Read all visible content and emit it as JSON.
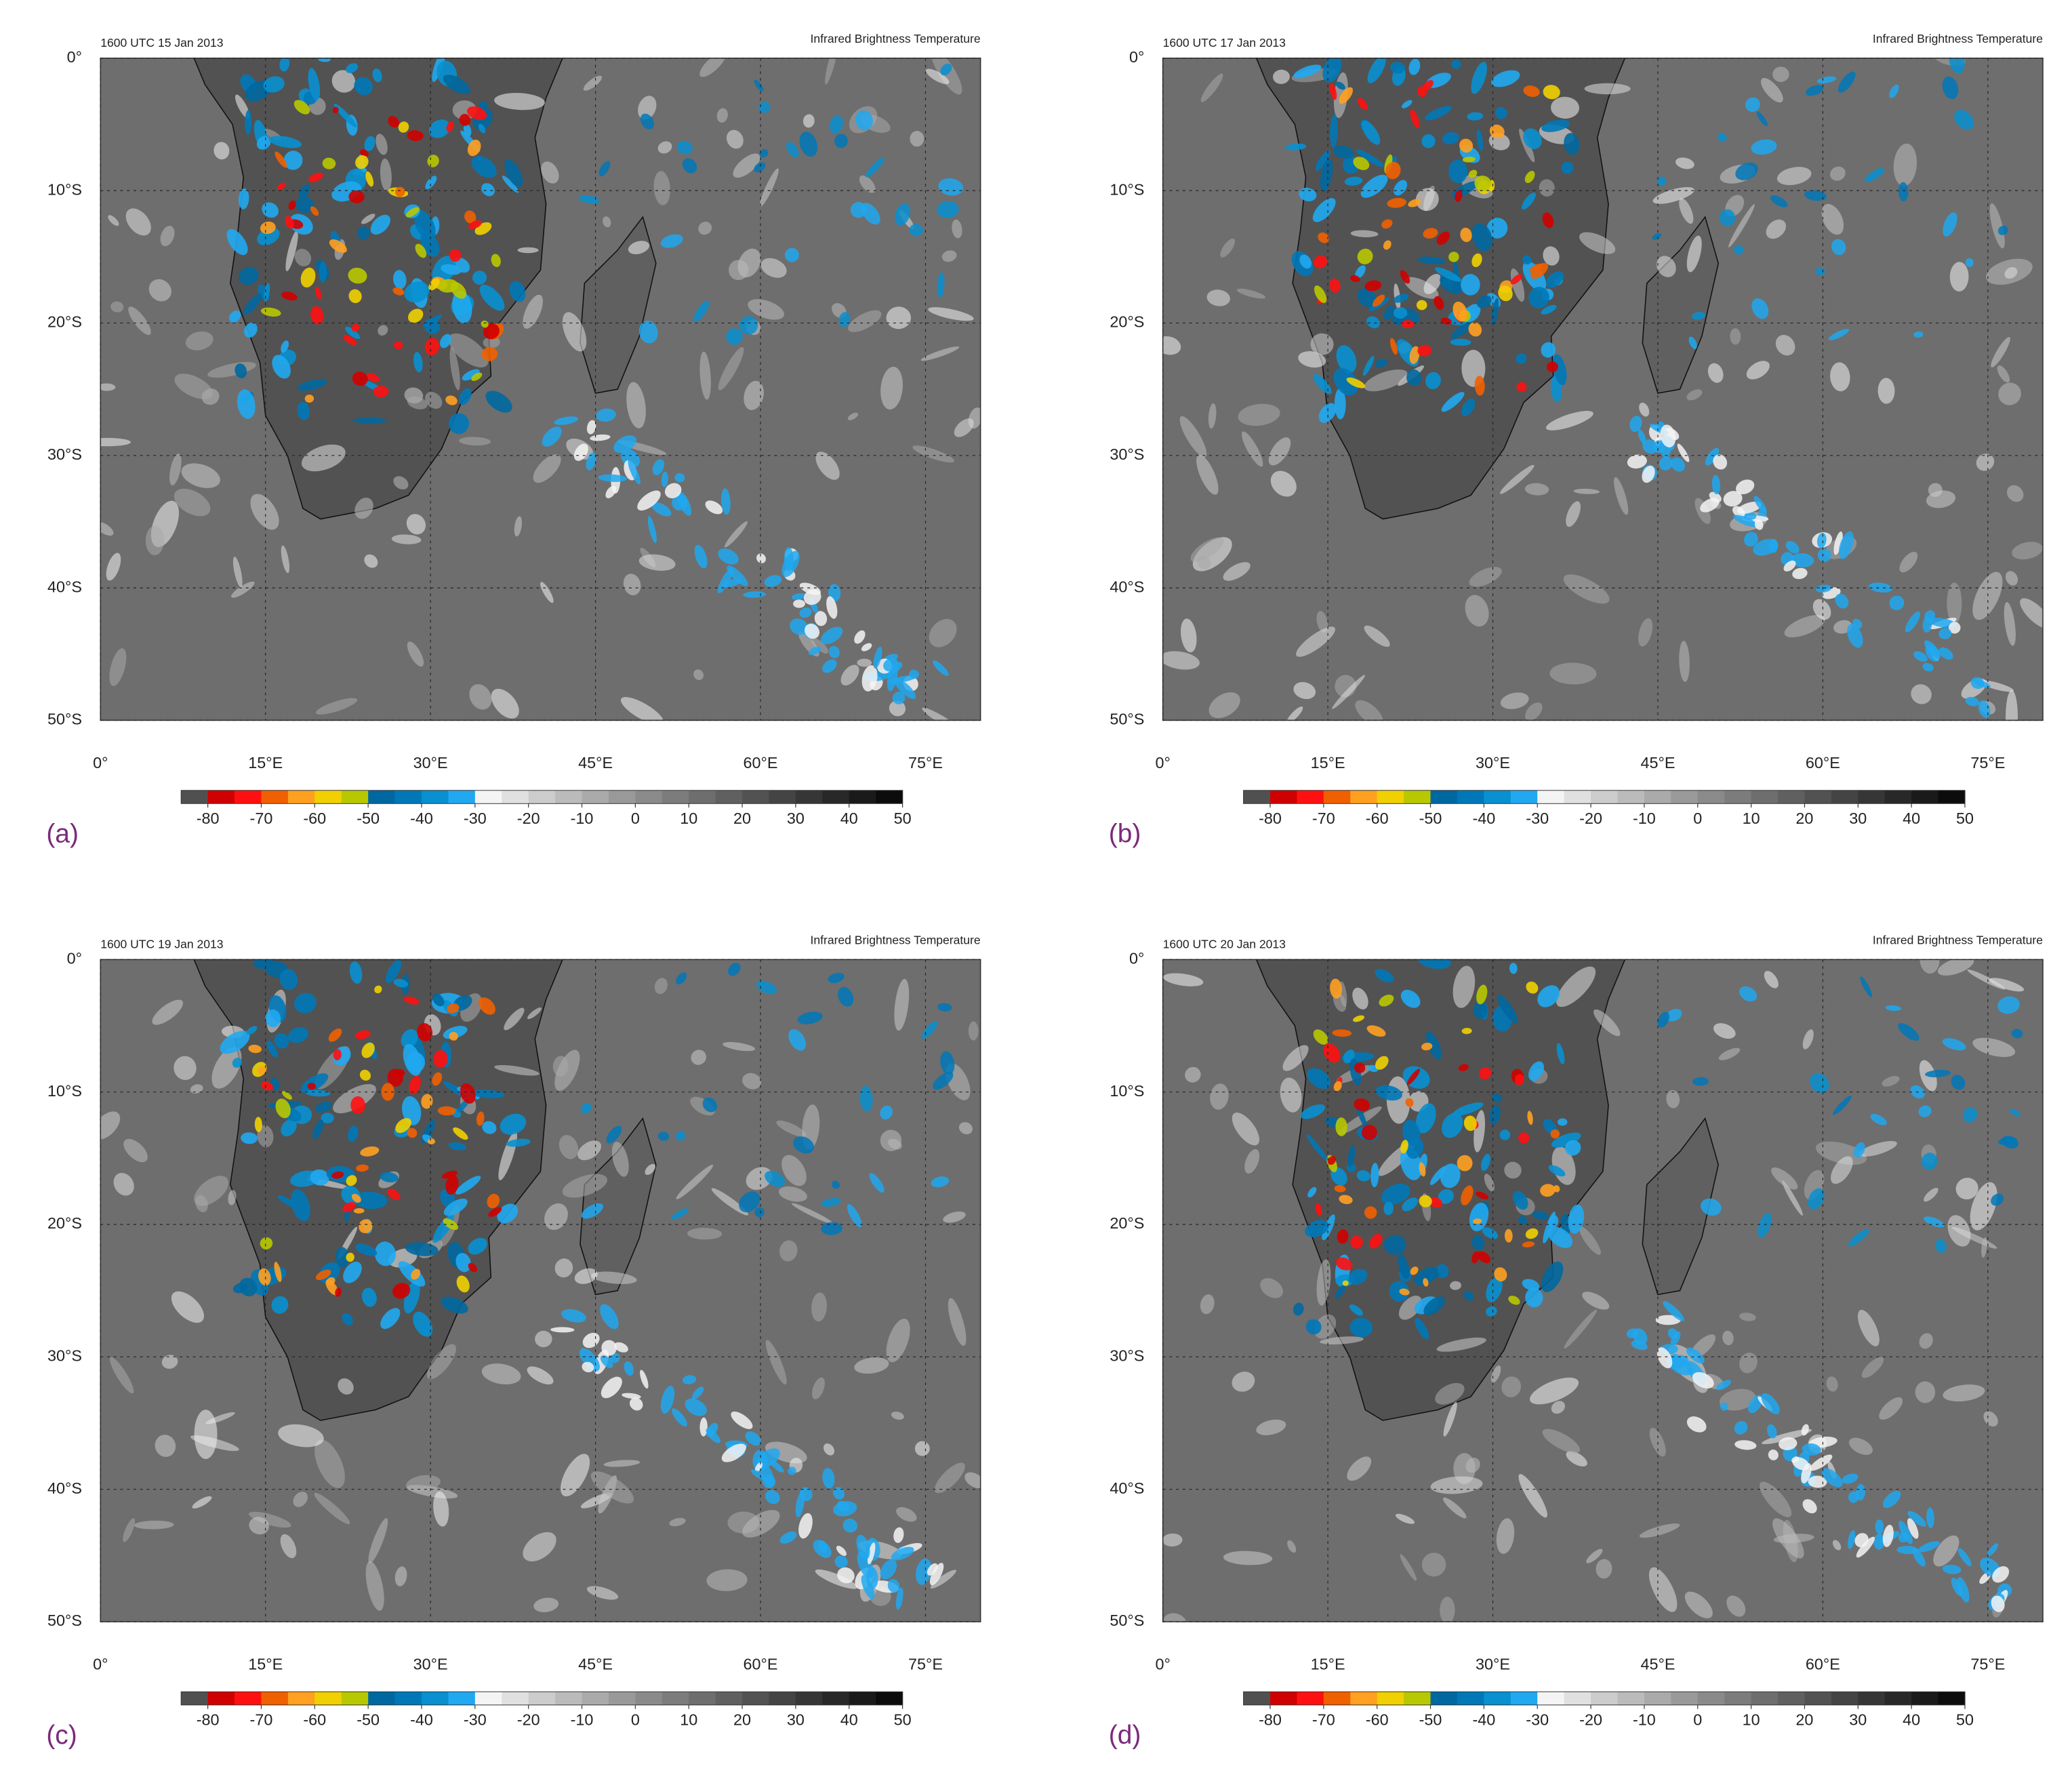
{
  "panels": [
    {
      "label": "(a)",
      "title": "1600 UTC 15 Jan 2013"
    },
    {
      "label": "(b)",
      "title": "1600 UTC 17 Jan 2013"
    },
    {
      "label": "(c)",
      "title": "1600 UTC 19 Jan 2013"
    },
    {
      "label": "(d)",
      "title": "1600 UTC 20 Jan 2013"
    }
  ],
  "product": "Infrared Brightness Temperature",
  "map": {
    "lon_range": [
      0,
      80
    ],
    "lat_range": [
      0,
      -50
    ],
    "lon_ticks": [
      {
        "value": 0,
        "label": "0°"
      },
      {
        "value": 15,
        "label": "15°E"
      },
      {
        "value": 30,
        "label": "30°E"
      },
      {
        "value": 45,
        "label": "45°E"
      },
      {
        "value": 60,
        "label": "60°E"
      },
      {
        "value": 75,
        "label": "75°E"
      }
    ],
    "lat_ticks": [
      {
        "value": 0,
        "label": "0°"
      },
      {
        "value": -10,
        "label": "10°S"
      },
      {
        "value": -20,
        "label": "20°S"
      },
      {
        "value": -30,
        "label": "30°S"
      },
      {
        "value": -40,
        "label": "40°S"
      },
      {
        "value": -50,
        "label": "50°S"
      }
    ]
  },
  "colorbar": {
    "range": [
      -85,
      50
    ],
    "ticks": [
      -80,
      -70,
      -60,
      -50,
      -40,
      -30,
      -20,
      -10,
      0,
      10,
      20,
      30,
      40,
      50
    ],
    "colors": [
      "#505050",
      "#d00000",
      "#ff1010",
      "#f06000",
      "#ffa020",
      "#f0d000",
      "#b8c800",
      "#0068a0",
      "#0078b8",
      "#0890d0",
      "#20a8f0",
      "#f4f4f4",
      "#e0e0e0",
      "#cccccc",
      "#bbbbbb",
      "#aaaaaa",
      "#999999",
      "#8a8a8a",
      "#7c7c7c",
      "#6e6e6e",
      "#606060",
      "#525252",
      "#444444",
      "#363636",
      "#282828",
      "#1a1a1a",
      "#0c0c0c"
    ]
  }
}
